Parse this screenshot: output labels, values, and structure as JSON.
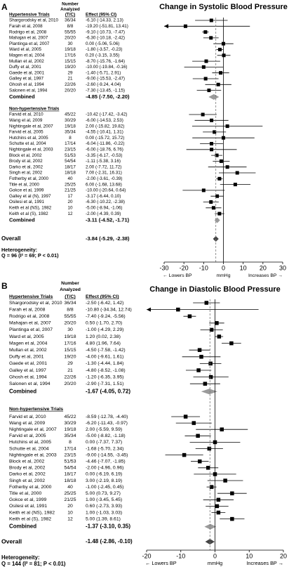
{
  "chart_data": [
    {
      "type": "forest",
      "panel": "A",
      "title": "Change in Systolic Blood Pressure",
      "n_header": [
        "Number",
        "Analyzed",
        "(T/C)"
      ],
      "effect_header": "Effect (95% CI)",
      "groups": [
        {
          "name": "Hypertensive Trials",
          "studies": [
            "Shargorodsky et al, 2010",
            "Farah et al, 2008",
            "Rodrigo et al, 2008",
            "Mahajan et al, 2007",
            "Plantinga et al, 2007",
            "Ward et al, 2005",
            "Magen et al, 2004",
            "Mullan et al, 2002",
            "Duffy et al, 2001",
            "Gaede et al, 2001",
            "Galley et al, 1997",
            "Ghosh et al, 1994",
            "Salonen et al, 1994"
          ],
          "n": [
            "36/34",
            "8/8",
            "55/55",
            "20/20",
            "30",
            "19/18",
            "17/16",
            "15/15",
            "19/20",
            "29",
            "21",
            "22/26",
            "20/20"
          ],
          "values": [
            -6.1,
            -19.2,
            -9.1,
            -6.3,
            0.0,
            -1.8,
            0.2,
            -8.7,
            -10.0,
            -1.4,
            -9.0,
            -2.6,
            -7.3
          ],
          "lower": [
            -14.33,
            -51.81,
            -10.73,
            -10.18,
            -5.06,
            -3.57,
            -3.15,
            -15.76,
            -19.84,
            -5.71,
            -15.53,
            -9.24,
            -13.45
          ],
          "upper": [
            2.13,
            13.41,
            -7.47,
            -2.42,
            5.06,
            -0.23,
            3.55,
            -1.64,
            -0.16,
            2.91,
            -2.47,
            4.04,
            -1.15
          ],
          "value_labels": [
            "-6.10 (-14.33, 2.13)",
            "-19.20 (-51.81, 13.41)",
            "-9.10 (-10.73, -7.47)",
            "-6.30 (-10.18, -2.42)",
            "0.00 (-5.06, 5.06)",
            "-1.80 (-3.57, -0.23)",
            "0.20 (-3.15, 3.55)",
            "-8.70 (-15.76, -1.64)",
            "-10.00 (-19.84, -0.16)",
            "-1.40 (-5.71, 2.91)",
            "-9.00 (-15.53, -2.47)",
            "-2.60 (-9.24, 4.04)",
            "-7.30 (-13.45, -1.15)"
          ],
          "combined": {
            "label": "Combined",
            "value": -4.85,
            "lower": -7.5,
            "upper": -2.2,
            "value_label": "-4.85 (-7.50, -2.20)"
          }
        },
        {
          "name": "Non-hypertensive Trials",
          "studies": [
            "Farvid et al, 2010",
            "Wang et al, 2009",
            "Nightingale et al, 2007",
            "Farvid et al, 2005",
            "Hutchins et al, 2005",
            "Schutte et al, 2004",
            "Nightingale et al, 2003",
            "Block et al, 2002",
            "Brody et al, 2002",
            "Darko et al, 2002",
            "Singh et al, 2002",
            "Fotherby et al, 2000",
            "Title et al, 2000",
            "Gokce et al, 1999",
            "Galley et al (N), 1997",
            "Osilesi et al, 1991",
            "Keith et al (NS), 1982",
            "Keith et al (S), 1982"
          ],
          "n": [
            "45/22",
            "30/29",
            "19/18",
            "35/34",
            "8",
            "17/14",
            "23/15",
            "51/53",
            "54/54",
            "18/17",
            "18/18",
            "40",
            "25/25",
            "21/25",
            "17",
            "20",
            "10",
            "12"
          ],
          "values": [
            -10.42,
            -6.0,
            2.0,
            -4.55,
            0.0,
            -6.04,
            -6.0,
            -3.35,
            -1.11,
            2.0,
            7.0,
            -2.0,
            6.0,
            -10.0,
            -3.17,
            -6.3,
            -5.0,
            -2.0
          ],
          "lower": [
            -17.42,
            -14.53,
            -15.82,
            -10.41,
            -15.72,
            -11.86,
            -18.76,
            -6.17,
            -5.38,
            -7.72,
            -2.31,
            -3.61,
            -1.68,
            -20.64,
            -6.44,
            -10.22,
            -8.94,
            -4.39
          ],
          "upper": [
            -3.42,
            2.53,
            19.82,
            1.31,
            15.72,
            -0.22,
            6.76,
            -0.53,
            3.16,
            11.72,
            16.31,
            -0.39,
            13.68,
            0.64,
            0.1,
            -2.38,
            -1.06,
            0.39
          ],
          "value_labels": [
            "-10.42 (-17.42, -3.42)",
            "-6.00 (-14.53, 2.53)",
            "2.00 (-15.82, 19.82)",
            "-4.55 (-10.41, 1.31)",
            "0.00 (-15.72, 15.72)",
            "-6.04 (-11.86, -0.22)",
            "-6.00 (-18.76, 6.76)",
            "-3.35 (-6.17, -0.53)",
            "-1.11 (-5.38, 3.16)",
            "2.00 (-7.72, 11.72)",
            "7.00 (-2.31, 16.31)",
            "-2.00 (-3.61, -0.39)",
            "6.00 (-1.68, 13.68)",
            "-10.00 (-20.64, 0.64)",
            "-3.17 (-6.44, 0.10)",
            "-6.30 (-10.22, -2.38)",
            "-5.00 (-8.94, -1.06)",
            "-2.00 (-4.39, 0.39)"
          ],
          "combined": {
            "label": "Combined",
            "value": -3.11,
            "lower": -4.52,
            "upper": -1.71,
            "value_label": "-3.11 (-4.52, -1.71)"
          }
        }
      ],
      "overall": {
        "label": "Overall",
        "value": -3.84,
        "lower": -5.29,
        "upper": -2.38,
        "value_label": "-3.84 (-5.29, -2.38)"
      },
      "heterogeneity": [
        "Heterogeneity:",
        "Q = 96 (I² = 69; P < 0.01)"
      ],
      "xlim": [
        -30,
        30
      ],
      "xticks": [
        -30,
        -20,
        -10,
        0,
        10,
        20,
        30
      ],
      "x_label": "mmHg",
      "left_label": "← Lowers BP",
      "right_label": "Increases BP →"
    },
    {
      "type": "forest",
      "panel": "B",
      "title": "Change in Diastolic Blood Pressure",
      "n_header": [
        "Number",
        "Analyzed",
        "(T/C)"
      ],
      "effect_header": "Effect (95% CI)",
      "groups": [
        {
          "name": "Hypertensive Trials",
          "studies": [
            "Shargorodsky et al, 2010",
            "Farah et al, 2008",
            "Rodrigo et al, 2008",
            "Mahajan et al, 2007",
            "Plantinga et al, 2007",
            "Ward et al, 2005",
            "Magen et al, 2004",
            "Mullan et al, 2002",
            "Duffy et al, 2001",
            "Gaede et al, 2001",
            "Galley et al, 1997",
            "Ghosh et al, 1994",
            "Salonen et al, 1994"
          ],
          "n": [
            "36/34",
            "8/8",
            "55/55",
            "20/20",
            "30",
            "19/18",
            "17/16",
            "15/15",
            "19/20",
            "29",
            "21",
            "22/26",
            "20/20"
          ],
          "values": [
            -2.5,
            -10.8,
            -7.4,
            0.5,
            -1.0,
            1.2,
            4.8,
            -4.5,
            -4.0,
            -1.3,
            -4.8,
            -1.2,
            -2.9
          ],
          "lower": [
            -6.42,
            -34.34,
            -9.24,
            -1.7,
            -4.29,
            0.02,
            1.96,
            -7.58,
            -9.61,
            -4.44,
            -8.52,
            -6.35,
            -7.31
          ],
          "upper": [
            1.42,
            12.74,
            -5.56,
            2.7,
            2.29,
            2.38,
            7.64,
            -1.42,
            1.61,
            1.84,
            -1.08,
            3.95,
            1.51
          ],
          "value_labels": [
            "-2.50 (-6.42, 1.42)",
            "-10.80 (-34.34, 12.74)",
            "-7.40 (-9.24, -5.56)",
            "0.50 (-1.70, 2.70)",
            "-1.00 (-4.29, 2.29)",
            "1.20 (0.02, 2.38)",
            "4.80 (1.96, 7.64)",
            "-4.50 (-7.58, -1.42)",
            "-4.00 (-9.61, 1.61)",
            "-1.30 (-4.44, 1.84)",
            "-4.80 (-8.52, -1.08)",
            "-1.20 (-6.35, 3.95)",
            "-2.90 (-7.31, 1.51)"
          ],
          "combined": {
            "label": "Combined",
            "value": -1.67,
            "lower": -4.05,
            "upper": 0.72,
            "value_label": "-1.67 (-4.05, 0.72)"
          }
        },
        {
          "name": "Non-hypertensive Trials",
          "studies": [
            "Farvid et al, 2010",
            "Wang et al, 2009",
            "Nightingale et al, 2007",
            "Farvid et al, 2005",
            "Hutchins et al, 2005",
            "Schutte et al, 2004",
            "Nightingale et al, 2003",
            "Block et al, 2002",
            "Brody et al, 2002",
            "Darko et al, 2002",
            "Singh et al, 2002",
            "Fotherby et al, 2000",
            "Title et al, 2000",
            "Gokce et al, 1999",
            "Osilesi et al, 1991",
            "Keith et al (NS), 1982",
            "Keith et al (S), 1982"
          ],
          "n": [
            "45/22",
            "30/29",
            "19/18",
            "35/34",
            "8",
            "17/14",
            "23/15",
            "51/53",
            "54/54",
            "18/17",
            "18/18",
            "40",
            "25/25",
            "21/25",
            "20",
            "10",
            "12"
          ],
          "values": [
            -8.59,
            -6.2,
            2.0,
            -5.0,
            0.0,
            -1.68,
            -9.0,
            -4.46,
            -2.0,
            0.0,
            3.0,
            -1.0,
            5.0,
            1.0,
            0.6,
            1.0,
            5.0
          ],
          "lower": [
            -12.78,
            -11.43,
            -5.59,
            -8.82,
            -7.37,
            -5.7,
            -14.55,
            -7.07,
            -4.96,
            -6.19,
            -2.19,
            -2.45,
            0.73,
            -3.45,
            -2.73,
            -1.03,
            1.39
          ],
          "upper": [
            -4.4,
            -0.97,
            9.59,
            -1.18,
            7.37,
            2.34,
            -3.45,
            -1.85,
            0.96,
            6.19,
            8.19,
            0.45,
            9.27,
            5.45,
            3.93,
            3.03,
            8.61
          ],
          "value_labels": [
            "-8.59 (-12.78, -4.40)",
            "-6.20 (-11.43, -0.97)",
            "2.00 (-5.59, 9.59)",
            "-5.00 (-8.82, -1.18)",
            "0.00 (-7.37, 7.37)",
            "-1.68 (-5.70, 2.34)",
            "-9.00 (-14.55, -3.45)",
            "-4.46 (-7.07, -1.85)",
            "-2.00 (-4.96, 0.96)",
            "0.00 (-6.19, 6.19)",
            "3.00 (-2.19, 8.19)",
            "-1.00 (-2.45, 0.45)",
            "5.00 (0.73, 9.27)",
            "1.00 (-3.45, 5.45)",
            "0.60 (-2.73, 3.93)",
            "1.00 (-1.03, 3.03)",
            "5.00 (1.39, 8.61)"
          ],
          "combined": {
            "label": "Combined",
            "value": -1.37,
            "lower": -3.1,
            "upper": 0.35,
            "value_label": "-1.37 (-3.10, 0.35)"
          }
        }
      ],
      "overall": {
        "label": "Overall",
        "value": -1.48,
        "lower": -2.86,
        "upper": -0.1,
        "value_label": "-1.48 (-2.86, -0.10)"
      },
      "heterogeneity": [
        "Heterogeneity:",
        "Q = 144 (I² = 81; P < 0.01)"
      ],
      "xlim": [
        -20,
        20
      ],
      "xticks": [
        -20,
        -10,
        0,
        10,
        20
      ],
      "x_label": "mmHg",
      "left_label": "← Lowers BP",
      "right_label": "Increases BP →"
    }
  ]
}
